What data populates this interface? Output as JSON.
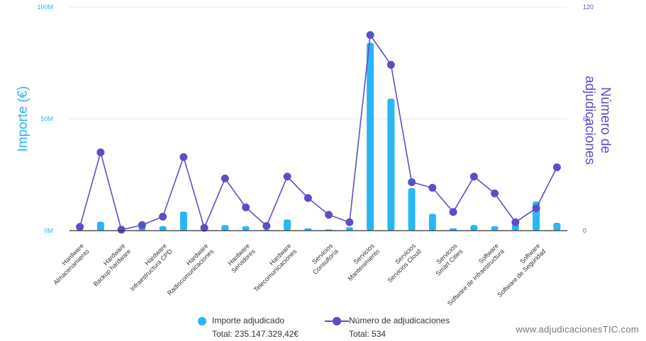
{
  "chart_data": {
    "type": "bar+line",
    "categories": [
      "Hardware\nAlmacenamiento",
      "Hardware\nBackup hardware",
      "Hardware\nInfraestructura CPD",
      "Hardware\nRadiocomunicaciones",
      "Hardware\nServidores",
      "Hardware\nTelecomunicaciones",
      "Servicios\nConsultoría",
      "Servicios\nMantenimiento",
      "Servicios\nServicios Cloud",
      "Servicios\nSmart Cities",
      "Software\nSoftware de Infraestructura",
      "Software\nSoftware de Seguridad"
    ],
    "x_points": 24,
    "bars": {
      "name": "Importe adjudicado",
      "color": "#29b6f6",
      "values": [
        0.2,
        4,
        0.1,
        2,
        2,
        8.5,
        0.2,
        2.5,
        2,
        0.4,
        5,
        1,
        0.5,
        1.5,
        84,
        59,
        19,
        7.5,
        1,
        2.5,
        2,
        3,
        13,
        3.5
      ]
    },
    "line": {
      "name": "Número de adjudicaciones",
      "color": "#5b4fc8",
      "values": [
        2,
        42,
        0.5,
        3,
        7.5,
        39.5,
        1.5,
        28,
        12.5,
        2.5,
        29,
        17.5,
        8.5,
        4.5,
        105,
        89,
        26,
        23,
        10,
        29,
        20,
        4.5,
        12,
        34
      ]
    },
    "y_left": {
      "label": "Importe (€)",
      "ticks": [
        "0M",
        "50M",
        "100M"
      ],
      "range": [
        0,
        100
      ]
    },
    "y_right": {
      "label": "Número de adjudicaciones",
      "ticks": [
        "0",
        "60",
        "120"
      ],
      "range": [
        0,
        120
      ]
    },
    "grid": true
  },
  "legend": {
    "importe": {
      "label": "Importe adjudicado",
      "total": "Total: 235.147.329,42€"
    },
    "numero": {
      "label": "Número de adjudicaciones",
      "total": "Total: 534"
    }
  },
  "watermark": "www.adjudicacionesTIC.com"
}
